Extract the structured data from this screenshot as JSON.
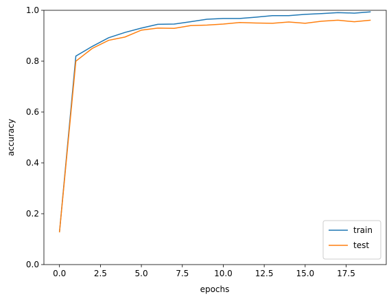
{
  "chart_data": {
    "type": "line",
    "x_label": "epochs",
    "y_label": "accuracy",
    "x": [
      0,
      1,
      2,
      3,
      4,
      5,
      6,
      7,
      8,
      9,
      10,
      11,
      12,
      13,
      14,
      15,
      16,
      17,
      18,
      19
    ],
    "series": [
      {
        "name": "train",
        "color": "#1f77b4",
        "values": [
          0.127,
          0.82,
          0.858,
          0.892,
          0.913,
          0.93,
          0.945,
          0.946,
          0.955,
          0.965,
          0.968,
          0.968,
          0.973,
          0.979,
          0.979,
          0.984,
          0.987,
          0.991,
          0.989,
          0.994
        ]
      },
      {
        "name": "test",
        "color": "#ff7f0e",
        "values": [
          0.127,
          0.8,
          0.85,
          0.882,
          0.895,
          0.922,
          0.93,
          0.929,
          0.94,
          0.942,
          0.946,
          0.952,
          0.95,
          0.949,
          0.954,
          0.949,
          0.957,
          0.961,
          0.955,
          0.961
        ]
      }
    ],
    "xlim": [
      -0.95,
      19.95
    ],
    "xticks": [
      {
        "value": 0,
        "label": "0.0"
      },
      {
        "value": 2.5,
        "label": "2.5"
      },
      {
        "value": 5,
        "label": "5.0"
      },
      {
        "value": 7.5,
        "label": "7.5"
      },
      {
        "value": 10,
        "label": "10.0"
      },
      {
        "value": 12.5,
        "label": "12.5"
      },
      {
        "value": 15,
        "label": "15.0"
      },
      {
        "value": 17.5,
        "label": "17.5"
      }
    ],
    "ylim": [
      0,
      1
    ],
    "yticks": [
      {
        "value": 0,
        "label": "0.0"
      },
      {
        "value": 0.2,
        "label": "0.2"
      },
      {
        "value": 0.4,
        "label": "0.4"
      },
      {
        "value": 0.6,
        "label": "0.6"
      },
      {
        "value": 0.8,
        "label": "0.8"
      },
      {
        "value": 1,
        "label": "1.0"
      }
    ],
    "legend": "lower right"
  }
}
